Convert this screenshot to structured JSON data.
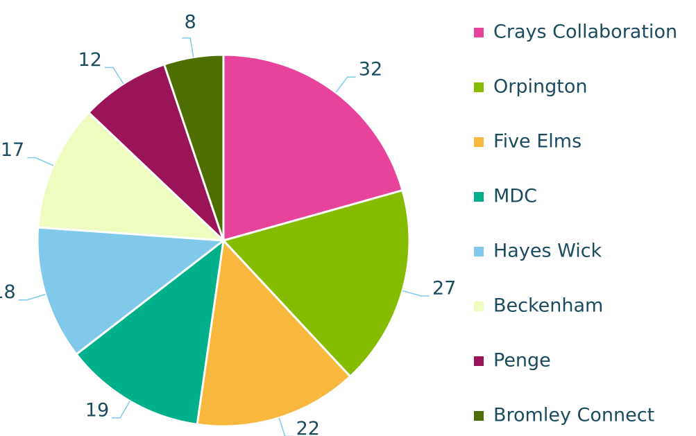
{
  "chart_data": {
    "type": "pie",
    "categories": [
      "Crays Collaboration",
      "Orpington",
      "Five Elms",
      "MDC",
      "Hayes Wick",
      "Beckenham",
      "Penge",
      "Bromley Connect"
    ],
    "values": [
      32,
      27,
      22,
      19,
      18,
      17,
      12,
      8
    ],
    "colors": [
      "#e8439a",
      "#86bc00",
      "#f8b83e",
      "#00b08a",
      "#80c9ea",
      "#eefcc0",
      "#9b1458",
      "#4e6e00"
    ],
    "legend": "right"
  }
}
